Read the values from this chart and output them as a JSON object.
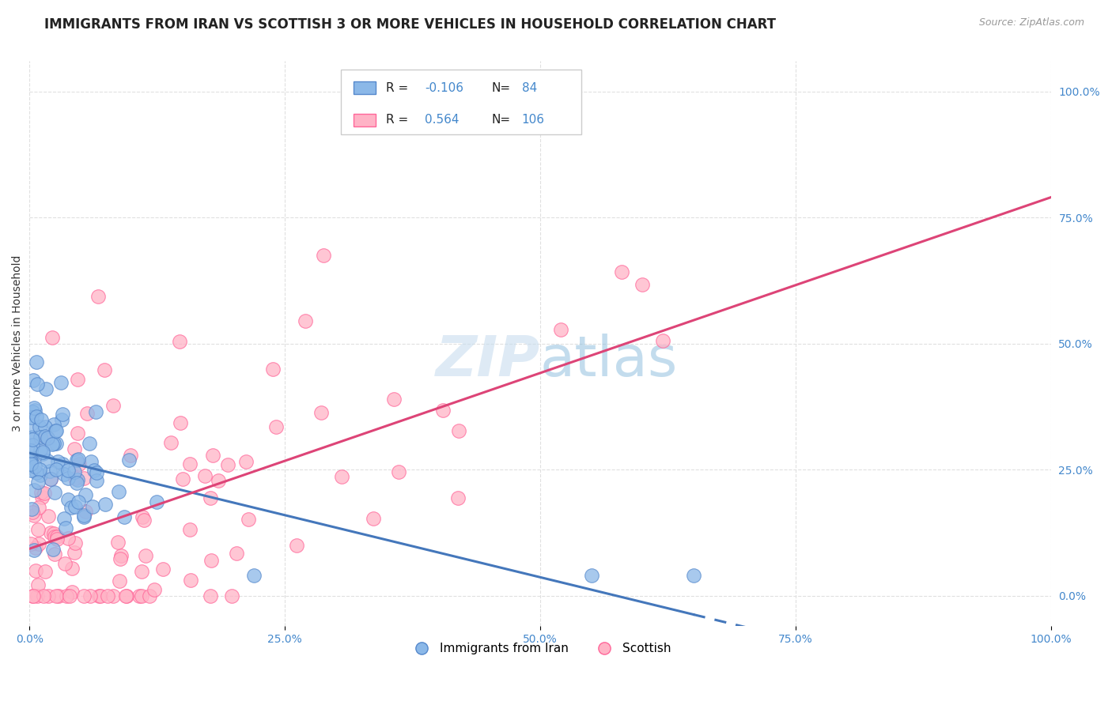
{
  "title": "IMMIGRANTS FROM IRAN VS SCOTTISH 3 OR MORE VEHICLES IN HOUSEHOLD CORRELATION CHART",
  "source": "Source: ZipAtlas.com",
  "ylabel": "3 or more Vehicles in Household",
  "xlim": [
    0.0,
    1.0
  ],
  "ylim": [
    -0.05,
    1.05
  ],
  "plot_ylim": [
    0.0,
    1.0
  ],
  "right_ytick_labels": [
    "0.0%",
    "25.0%",
    "50.0%",
    "75.0%",
    "100.0%"
  ],
  "right_ytick_values": [
    0.0,
    0.25,
    0.5,
    0.75,
    1.0
  ],
  "xtick_labels": [
    "0.0%",
    "25.0%",
    "50.0%",
    "75.0%",
    "100.0%"
  ],
  "xtick_values": [
    0.0,
    0.25,
    0.5,
    0.75,
    1.0
  ],
  "blue_R": -0.106,
  "blue_N": 84,
  "pink_R": 0.564,
  "pink_N": 106,
  "legend_label_blue": "Immigrants from Iran",
  "legend_label_pink": "Scottish",
  "blue_color": "#8BB8E8",
  "pink_color": "#FFB3C6",
  "blue_edge_color": "#5588CC",
  "pink_edge_color": "#FF6699",
  "blue_line_color": "#4477BB",
  "pink_line_color": "#DD4477",
  "watermark_color": "#C8DDEF",
  "text_color_blue": "#4488CC",
  "background_color": "#FFFFFF",
  "grid_color": "#E0E0E0",
  "title_fontsize": 12,
  "axis_label_fontsize": 10,
  "tick_fontsize": 10,
  "source_fontsize": 9
}
